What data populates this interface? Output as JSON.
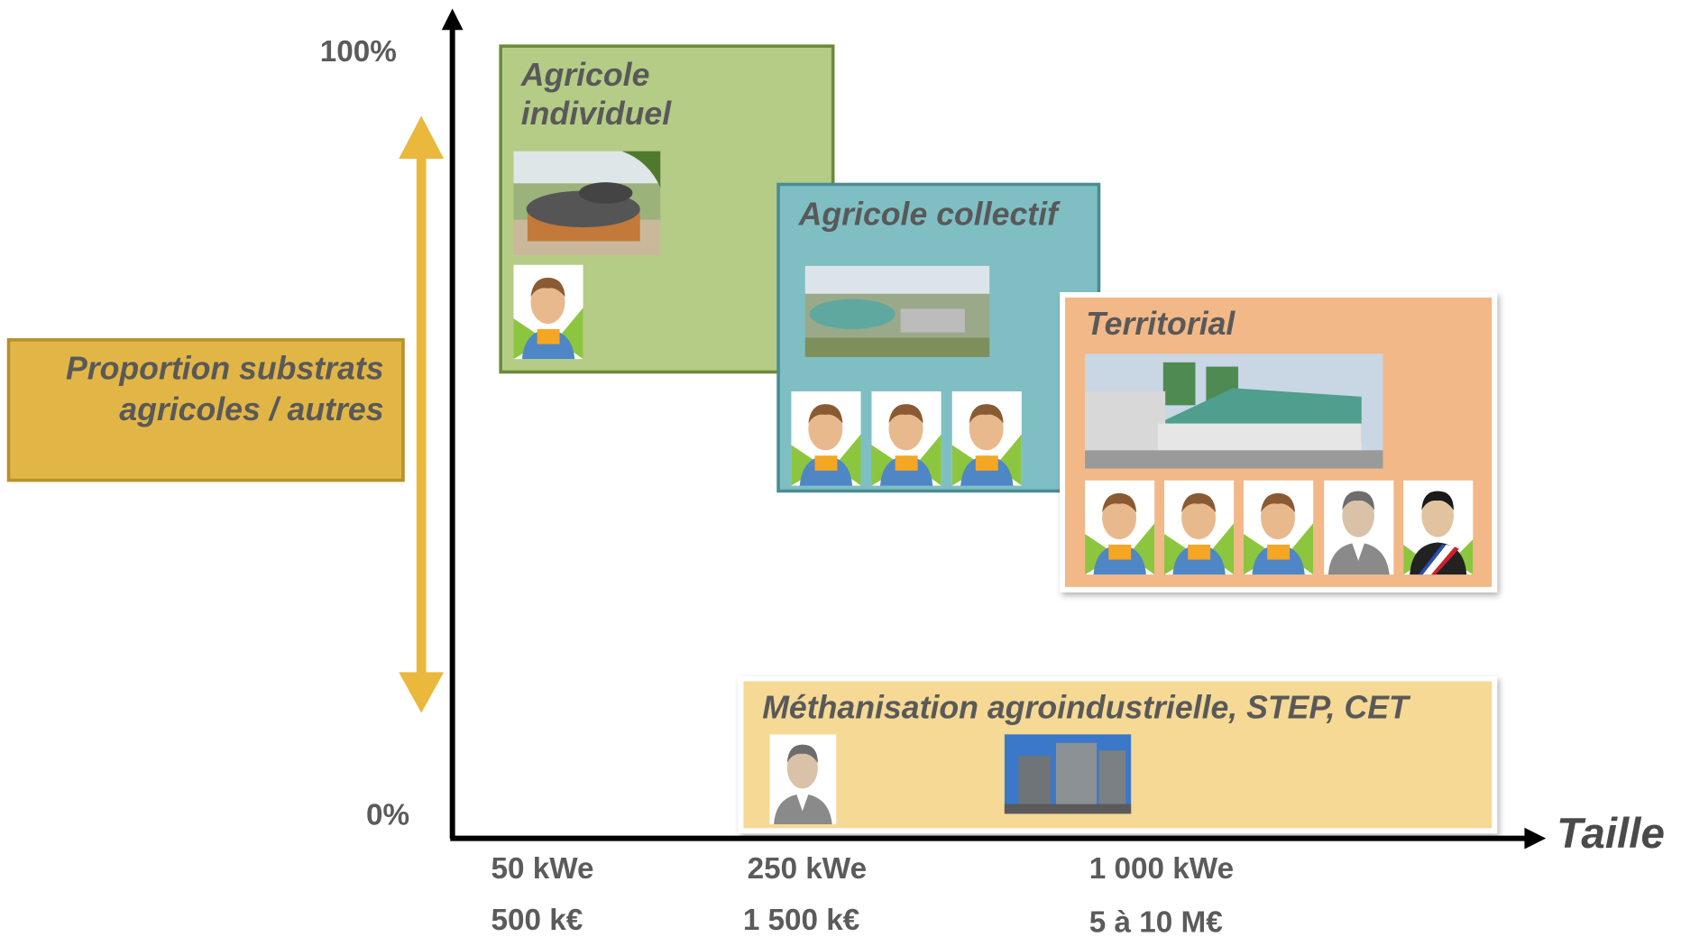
{
  "y_axis": {
    "top_label": "100%",
    "bottom_label": "0%",
    "title_lines": [
      "Proportion substrats",
      "agricoles / autres"
    ]
  },
  "x_axis": {
    "title": "Taille",
    "ticks": [
      {
        "power": "50 kWe",
        "cost": "500 k€"
      },
      {
        "power": "250 kWe",
        "cost": "1 500 k€"
      },
      {
        "power": "1 000 kWe",
        "cost": "5 à 10 M€"
      }
    ]
  },
  "boxes": [
    {
      "title_lines": [
        "Agricole",
        "individuel"
      ]
    },
    {
      "title_lines": [
        "Agricole collectif"
      ]
    },
    {
      "title_lines": [
        "Territorial"
      ]
    },
    {
      "title_lines": [
        "Méthanisation agroindustrielle, STEP, CET"
      ]
    }
  ]
}
